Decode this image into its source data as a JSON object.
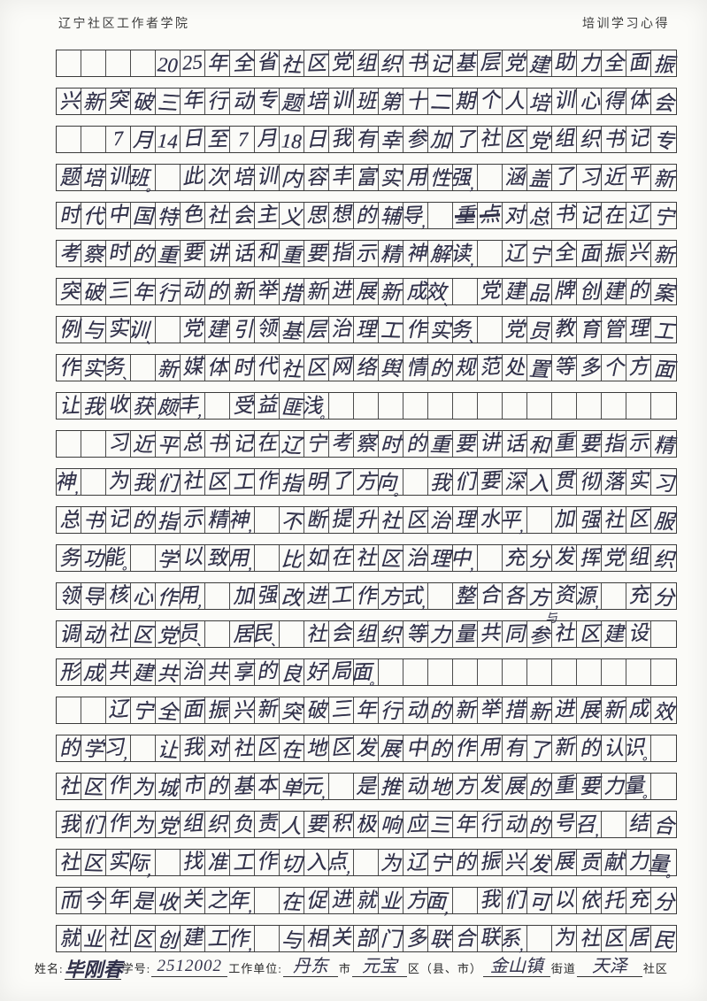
{
  "page": {
    "header_left": "辽宁社区工作者学院",
    "header_right": "培训学习心得"
  },
  "colors": {
    "ink": "#31314a",
    "grid_line": "#3b3b3b",
    "paper": "#fbfbf8"
  },
  "manuscript": {
    "columns": 25,
    "rows": [
      {
        "indent": 4,
        "text": "2025年全省社区党组织书记基层党建助力全面振"
      },
      {
        "indent": 0,
        "text": "兴新突破三年行动专题培训班第十二期个人培训心得体会"
      },
      {
        "indent": 2,
        "text": "7月14日至7月18日我有幸参加了社区党组织书记专"
      },
      {
        "indent": 0,
        "text": "题培训班。此次培训内容丰富实用性强，涵盖了习近平新"
      },
      {
        "indent": 0,
        "text": "时代中国特色社会主义思想的辅导，重点对总书记在辽宁",
        "strike": [
          16,
          17
        ]
      },
      {
        "indent": 0,
        "text": "考察时的重要讲话和重要指示精神解读，辽宁全面振兴新"
      },
      {
        "indent": 0,
        "text": "突破三年行动的新举措新进展新成效、党建品牌创建的案"
      },
      {
        "indent": 0,
        "text": "例与实训、党建引领基层治理工作实务、党员教育管理工"
      },
      {
        "indent": 0,
        "text": "作实务、新媒体时代社区网络舆情的规范处置等多个方面"
      },
      {
        "indent": 0,
        "text": "让我收获颇丰，受益匪浅。"
      },
      {
        "indent": 2,
        "text": "习近平总书记在辽宁考察时的重要讲话和重要指示精"
      },
      {
        "indent": 0,
        "text": "神，为我们社区工作指明了方向。我们要深入贯彻落实习"
      },
      {
        "indent": 0,
        "text": "总书记的指示精神，不断提升社区治理水平，加强社区服"
      },
      {
        "indent": 0,
        "text": "务功能。学以致用，比如在社区治理中，充分发挥党组织"
      },
      {
        "indent": 0,
        "text": "领导核心作用，加强改进工作方式，整合各方资源，充分"
      },
      {
        "indent": 0,
        "text": "调动社区党员、居民、社会组织等力量共同参社区建设",
        "insert_above": {
          "index": 20,
          "char": "与"
        }
      },
      {
        "indent": 0,
        "text": "形成共建共治共享的良好局面。"
      },
      {
        "indent": 2,
        "text": "辽宁全面振兴新突破三年行动的新举措新进展新成效"
      },
      {
        "indent": 0,
        "text": "的学习，让我对社区在地区发展中的作用有了新的认识。"
      },
      {
        "indent": 0,
        "text": "社区作为城市的基本单元，是推动地方发展的重要力量。"
      },
      {
        "indent": 0,
        "text": "我们作为党组织负责人要积极响应三年行动的号召，结合"
      },
      {
        "indent": 0,
        "text": "社区实际，找准工作切入点，为辽宁的振兴发展贡献力量。"
      },
      {
        "indent": 0,
        "text": "而今年是收关之年，在促进就业方面，我们可以依托充分"
      },
      {
        "indent": 0,
        "text": "就业社区创建工作，与相关部门多联合联系，为社区居民"
      }
    ]
  },
  "footer": {
    "name_label": "姓名:",
    "name_value": "毕刚春",
    "student_id_label": "学号:",
    "student_id_value": "2512002",
    "work_unit_label": "工作单位:",
    "city_value": "丹东",
    "city_suffix": "市",
    "district_value": "元宝",
    "district_suffix": "区（县、市）",
    "street_value": "金山镇",
    "street_suffix": "街道",
    "community_value": "天泽",
    "community_suffix": "社区"
  }
}
